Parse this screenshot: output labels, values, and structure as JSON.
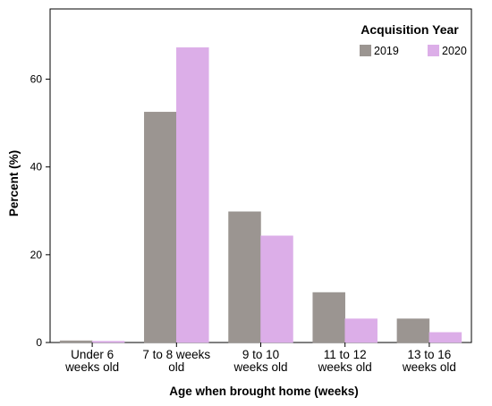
{
  "chart_data": {
    "type": "bar",
    "title": "",
    "xlabel": "Age when brought home (weeks)",
    "ylabel": "Percent (%)",
    "ylim": [
      0,
      76
    ],
    "yticks": [
      0,
      20,
      40,
      60
    ],
    "grid": false,
    "legend_position": "top-right",
    "legend_title": "Acquisition Year",
    "categories": [
      [
        "Under 6",
        "weeks old"
      ],
      [
        "7 to 8 weeks",
        "old"
      ],
      [
        "9 to 10",
        "weeks old"
      ],
      [
        "11 to 12",
        "weeks old"
      ],
      [
        "13 to 16",
        "weeks old"
      ]
    ],
    "series": [
      {
        "name": "2019",
        "color": "#9b9591",
        "values": [
          0.4,
          52.5,
          29.8,
          11.4,
          5.4
        ]
      },
      {
        "name": "2020",
        "color": "#dcaee8",
        "values": [
          0.3,
          67.2,
          24.3,
          5.4,
          2.3
        ]
      }
    ]
  }
}
